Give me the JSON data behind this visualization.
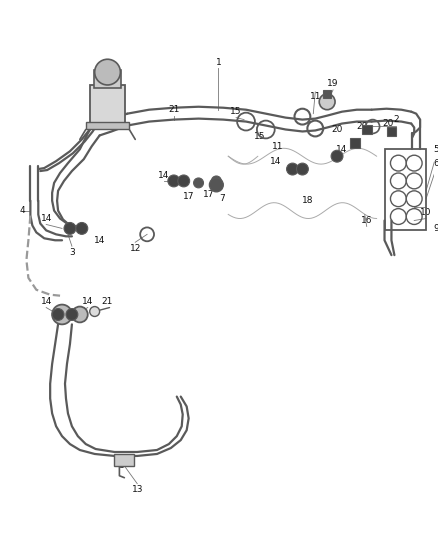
{
  "bg_color": "#ffffff",
  "lc": "#5a5a5a",
  "lc_light": "#888888",
  "lc_dark": "#333333",
  "label_fs": 6.5,
  "lw_main": 1.6,
  "lw_thin": 0.8,
  "fig_w": 4.38,
  "fig_h": 5.33,
  "dpi": 100
}
